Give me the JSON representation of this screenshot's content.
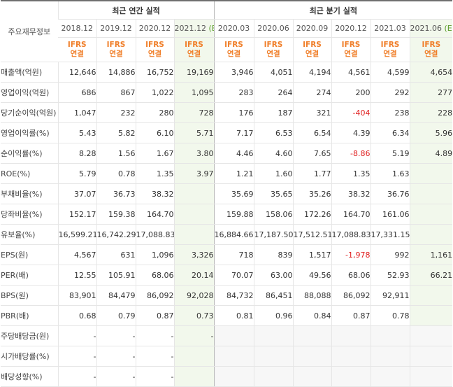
{
  "header": {
    "row_label": "주요재무정보",
    "annual_title": "최근 연간 실적",
    "quarterly_title": "최근 분기 실적",
    "periods": [
      {
        "date": "2018.12",
        "est": "",
        "std": "IFRS",
        "basis": "연결"
      },
      {
        "date": "2019.12",
        "est": "",
        "std": "IFRS",
        "basis": "연결"
      },
      {
        "date": "2020.12",
        "est": "",
        "std": "IFRS",
        "basis": "연결"
      },
      {
        "date": "2021.12",
        "est": "(E)",
        "std": "IFRS",
        "basis": "연결"
      },
      {
        "date": "2020.03",
        "est": "",
        "std": "IFRS",
        "basis": "연결"
      },
      {
        "date": "2020.06",
        "est": "",
        "std": "IFRS",
        "basis": "연결"
      },
      {
        "date": "2020.09",
        "est": "",
        "std": "IFRS",
        "basis": "연결"
      },
      {
        "date": "2020.12",
        "est": "",
        "std": "IFRS",
        "basis": "연결"
      },
      {
        "date": "2021.03",
        "est": "",
        "std": "IFRS",
        "basis": "연결"
      },
      {
        "date": "2021.06",
        "est": "(E)",
        "std": "IFRS",
        "basis": "연결"
      }
    ]
  },
  "rows": [
    {
      "label": "매출액(억원)",
      "values": [
        "12,646",
        "14,886",
        "16,752",
        "19,169",
        "3,946",
        "4,051",
        "4,194",
        "4,561",
        "4,599",
        "4,654"
      ]
    },
    {
      "label": "영업이익(억원)",
      "values": [
        "686",
        "867",
        "1,022",
        "1,095",
        "283",
        "264",
        "274",
        "200",
        "292",
        "277"
      ]
    },
    {
      "label": "당기순이익(억원)",
      "values": [
        "1,047",
        "232",
        "280",
        "728",
        "176",
        "187",
        "321",
        "-404",
        "238",
        "228"
      ]
    },
    {
      "label": "영업이익률(%)",
      "values": [
        "5.43",
        "5.82",
        "6.10",
        "5.71",
        "7.17",
        "6.53",
        "6.54",
        "4.39",
        "6.34",
        "5.96"
      ]
    },
    {
      "label": "순이익률(%)",
      "values": [
        "8.28",
        "1.56",
        "1.67",
        "3.80",
        "4.46",
        "4.60",
        "7.65",
        "-8.86",
        "5.19",
        "4.89"
      ]
    },
    {
      "label": "ROE(%)",
      "values": [
        "5.79",
        "0.78",
        "1.35",
        "3.97",
        "1.21",
        "1.60",
        "1.77",
        "1.35",
        "1.63",
        ""
      ]
    },
    {
      "label": "부채비율(%)",
      "values": [
        "37.07",
        "36.73",
        "38.32",
        "",
        "35.69",
        "35.65",
        "35.26",
        "38.32",
        "36.76",
        ""
      ]
    },
    {
      "label": "당좌비율(%)",
      "values": [
        "152.17",
        "159.38",
        "164.70",
        "",
        "159.88",
        "158.06",
        "172.26",
        "164.70",
        "161.06",
        ""
      ]
    },
    {
      "label": "유보율(%)",
      "values": [
        "16,599.21",
        "16,742.29",
        "17,088.83",
        "",
        "16,884.66",
        "17,187.50",
        "17,512.51",
        "17,088.83",
        "17,331.15",
        ""
      ]
    },
    {
      "label": "EPS(원)",
      "values": [
        "4,567",
        "631",
        "1,096",
        "3,326",
        "718",
        "839",
        "1,517",
        "-1,978",
        "992",
        "1,161"
      ]
    },
    {
      "label": "PER(배)",
      "values": [
        "12.55",
        "105.91",
        "68.06",
        "20.14",
        "70.07",
        "63.00",
        "49.56",
        "68.06",
        "52.93",
        "66.21"
      ]
    },
    {
      "label": "BPS(원)",
      "values": [
        "83,901",
        "84,479",
        "86,092",
        "92,028",
        "84,732",
        "86,451",
        "88,088",
        "86,092",
        "92,911",
        ""
      ]
    },
    {
      "label": "PBR(배)",
      "values": [
        "0.68",
        "0.79",
        "0.87",
        "0.73",
        "0.81",
        "0.96",
        "0.84",
        "0.87",
        "0.78",
        ""
      ]
    },
    {
      "label": "주당배당금(원)",
      "values": [
        "-",
        "-",
        "-",
        "-",
        "",
        "",
        "",
        "",
        "",
        ""
      ]
    },
    {
      "label": "시가배당률(%)",
      "values": [
        "-",
        "-",
        "-",
        "",
        "",
        "",
        "",
        "",
        "",
        ""
      ]
    },
    {
      "label": "배당성향(%)",
      "values": [
        "-",
        "-",
        "-",
        "",
        "",
        "",
        "",
        "",
        "",
        ""
      ]
    }
  ],
  "colors": {
    "ifrs_text": "#f07f2a",
    "estimate_bg": "#f2f8ec",
    "estimate_mark": "#5a9b2a",
    "negative": "#e02020",
    "empty_bg": "#f7f7f7"
  }
}
